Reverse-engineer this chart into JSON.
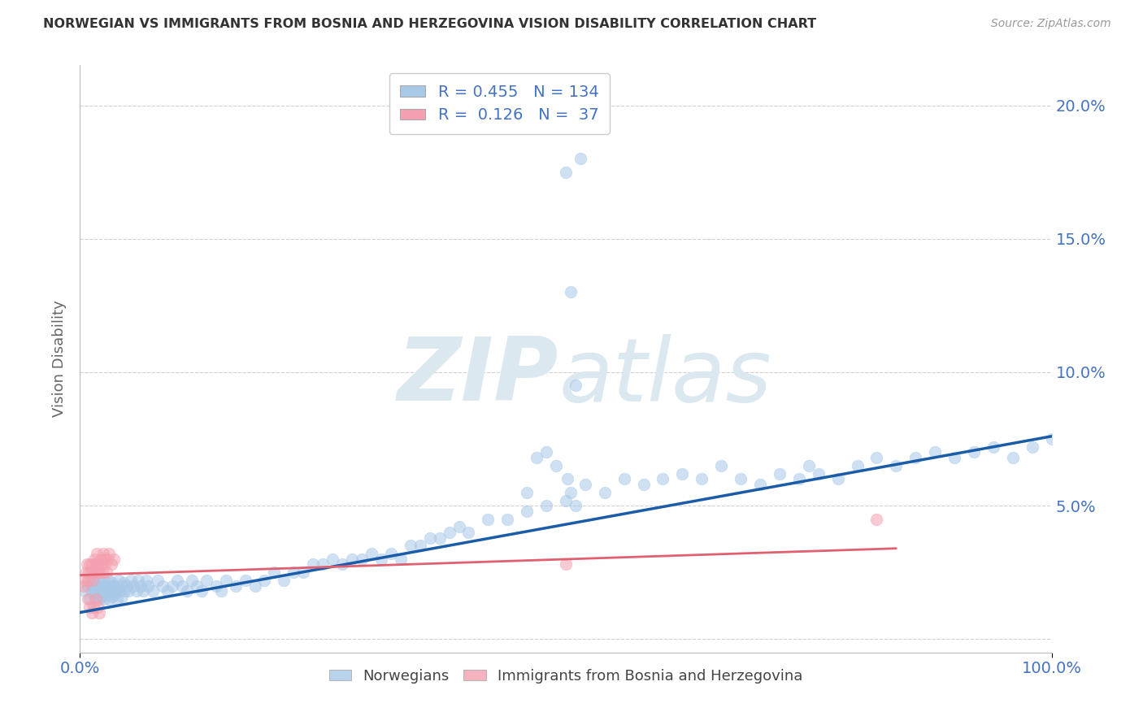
{
  "title": "NORWEGIAN VS IMMIGRANTS FROM BOSNIA AND HERZEGOVINA VISION DISABILITY CORRELATION CHART",
  "source": "Source: ZipAtlas.com",
  "ylabel": "Vision Disability",
  "y_tick_labels": [
    "5.0%",
    "10.0%",
    "15.0%",
    "20.0%"
  ],
  "y_tick_values": [
    0.05,
    0.1,
    0.15,
    0.2
  ],
  "xlim": [
    0.0,
    1.0
  ],
  "ylim": [
    -0.005,
    0.215
  ],
  "blue_color": "#a8c8e8",
  "pink_color": "#f4a0b0",
  "line_blue_color": "#1a5ca8",
  "line_pink_color": "#e06070",
  "blue_scatter_x": [
    0.005,
    0.008,
    0.01,
    0.01,
    0.012,
    0.013,
    0.015,
    0.015,
    0.016,
    0.017,
    0.018,
    0.019,
    0.02,
    0.02,
    0.021,
    0.022,
    0.022,
    0.023,
    0.024,
    0.025,
    0.025,
    0.026,
    0.027,
    0.028,
    0.029,
    0.03,
    0.03,
    0.031,
    0.032,
    0.033,
    0.033,
    0.034,
    0.035,
    0.036,
    0.037,
    0.038,
    0.04,
    0.041,
    0.042,
    0.043,
    0.045,
    0.046,
    0.048,
    0.05,
    0.052,
    0.055,
    0.058,
    0.06,
    0.062,
    0.065,
    0.068,
    0.07,
    0.075,
    0.08,
    0.085,
    0.09,
    0.095,
    0.1,
    0.105,
    0.11,
    0.115,
    0.12,
    0.125,
    0.13,
    0.14,
    0.145,
    0.15,
    0.16,
    0.17,
    0.18,
    0.19,
    0.2,
    0.21,
    0.22,
    0.23,
    0.24,
    0.25,
    0.26,
    0.27,
    0.28,
    0.29,
    0.3,
    0.31,
    0.32,
    0.33,
    0.34,
    0.35,
    0.36,
    0.37,
    0.38,
    0.39,
    0.4,
    0.42,
    0.44,
    0.46,
    0.48,
    0.5,
    0.502,
    0.505,
    0.51,
    0.52,
    0.54,
    0.56,
    0.58,
    0.6,
    0.62,
    0.64,
    0.66,
    0.68,
    0.7,
    0.72,
    0.74,
    0.75,
    0.76,
    0.78,
    0.8,
    0.82,
    0.84,
    0.86,
    0.88,
    0.9,
    0.92,
    0.94,
    0.96,
    0.98,
    1.0,
    0.5,
    0.505,
    0.515,
    0.51,
    0.48,
    0.49,
    0.47,
    0.46
  ],
  "blue_scatter_y": [
    0.018,
    0.02,
    0.015,
    0.022,
    0.018,
    0.02,
    0.016,
    0.021,
    0.018,
    0.02,
    0.017,
    0.019,
    0.015,
    0.022,
    0.018,
    0.016,
    0.021,
    0.018,
    0.02,
    0.015,
    0.022,
    0.018,
    0.02,
    0.017,
    0.019,
    0.015,
    0.022,
    0.018,
    0.02,
    0.016,
    0.021,
    0.018,
    0.02,
    0.017,
    0.019,
    0.015,
    0.022,
    0.018,
    0.02,
    0.016,
    0.021,
    0.018,
    0.02,
    0.018,
    0.022,
    0.02,
    0.018,
    0.022,
    0.02,
    0.018,
    0.022,
    0.02,
    0.018,
    0.022,
    0.02,
    0.018,
    0.02,
    0.022,
    0.02,
    0.018,
    0.022,
    0.02,
    0.018,
    0.022,
    0.02,
    0.018,
    0.022,
    0.02,
    0.022,
    0.02,
    0.022,
    0.025,
    0.022,
    0.025,
    0.025,
    0.028,
    0.028,
    0.03,
    0.028,
    0.03,
    0.03,
    0.032,
    0.03,
    0.032,
    0.03,
    0.035,
    0.035,
    0.038,
    0.038,
    0.04,
    0.042,
    0.04,
    0.045,
    0.045,
    0.048,
    0.05,
    0.052,
    0.06,
    0.055,
    0.05,
    0.058,
    0.055,
    0.06,
    0.058,
    0.06,
    0.062,
    0.06,
    0.065,
    0.06,
    0.058,
    0.062,
    0.06,
    0.065,
    0.062,
    0.06,
    0.065,
    0.068,
    0.065,
    0.068,
    0.07,
    0.068,
    0.07,
    0.072,
    0.068,
    0.072,
    0.075,
    0.175,
    0.13,
    0.18,
    0.095,
    0.07,
    0.065,
    0.068,
    0.055
  ],
  "pink_scatter_x": [
    0.004,
    0.005,
    0.006,
    0.007,
    0.008,
    0.009,
    0.01,
    0.011,
    0.012,
    0.013,
    0.014,
    0.015,
    0.016,
    0.017,
    0.018,
    0.019,
    0.02,
    0.021,
    0.022,
    0.023,
    0.024,
    0.025,
    0.026,
    0.027,
    0.028,
    0.03,
    0.032,
    0.035,
    0.008,
    0.01,
    0.012,
    0.014,
    0.016,
    0.018,
    0.02,
    0.5,
    0.82
  ],
  "pink_scatter_y": [
    0.02,
    0.022,
    0.025,
    0.028,
    0.022,
    0.025,
    0.028,
    0.025,
    0.028,
    0.022,
    0.025,
    0.03,
    0.028,
    0.032,
    0.025,
    0.028,
    0.025,
    0.03,
    0.028,
    0.025,
    0.032,
    0.03,
    0.028,
    0.025,
    0.03,
    0.032,
    0.028,
    0.03,
    0.015,
    0.012,
    0.01,
    0.012,
    0.015,
    0.012,
    0.01,
    0.028,
    0.045
  ],
  "blue_line_x": [
    0.0,
    1.0
  ],
  "blue_line_y": [
    0.01,
    0.076
  ],
  "pink_line_x": [
    0.0,
    0.84
  ],
  "pink_line_y": [
    0.024,
    0.034
  ],
  "background_color": "#ffffff",
  "grid_color": "#d0d0d0",
  "title_color": "#333333",
  "axis_label_color": "#4472c4",
  "wm_color": "#dce8f0"
}
